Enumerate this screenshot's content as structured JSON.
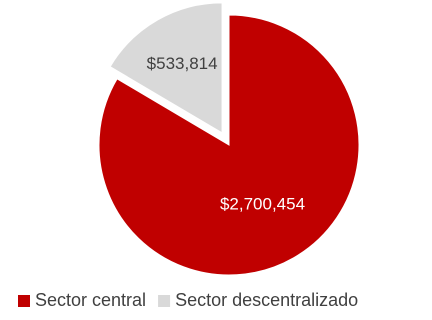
{
  "chart_data": {
    "type": "pie",
    "slices": [
      {
        "label": "Sector central",
        "value": 2700454,
        "display": "$2,700,454",
        "color": "#C00000",
        "exploded": false
      },
      {
        "label": "Sector descentralizado",
        "value": 533814,
        "display": "$533,814",
        "color": "#D9D9D9",
        "exploded": true
      }
    ],
    "legend_position": "bottom",
    "label_color_on_red": "#ffffff",
    "label_color_on_grey": "#404040"
  }
}
